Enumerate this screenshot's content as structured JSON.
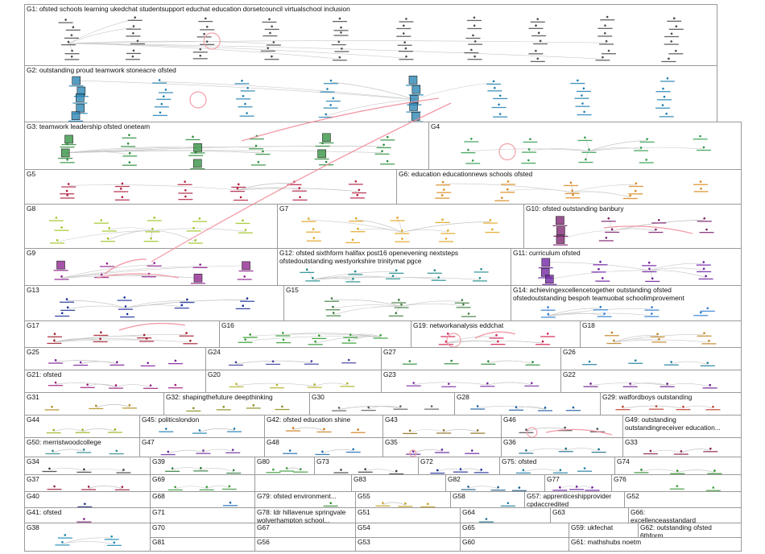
{
  "groups": [
    {
      "id": "G1",
      "label": "G1: ofsted schools learning ukedchat studentsupport educhat education dorsetcouncil virtualschool inclusion",
      "color": "#4a4a4a"
    },
    {
      "id": "G2",
      "label": "G2: outstanding proud teamwork stoneacre ofsted",
      "color": "#1f7fb0"
    },
    {
      "id": "G3",
      "label": "G3: teamwork leadership ofsted oneteam",
      "color": "#2a8c3a"
    },
    {
      "id": "G4",
      "label": "G4",
      "color": "#2c9a4a"
    },
    {
      "id": "G5",
      "label": "G5",
      "color": "#b01c3c"
    },
    {
      "id": "G6",
      "label": "G6: education educationnews schools ofsted",
      "color": "#d9861a"
    },
    {
      "id": "G7",
      "label": "G7",
      "color": "#e0a21a"
    },
    {
      "id": "G8",
      "label": "G8",
      "color": "#9bc41e"
    },
    {
      "id": "G9",
      "label": "G9",
      "color": "#8a1a8a"
    },
    {
      "id": "G10",
      "label": "G10: ofsted outstanding banbury",
      "color": "#7a1a6a"
    },
    {
      "id": "G11",
      "label": "G11: curriculum ofsted",
      "color": "#6a1aa0"
    },
    {
      "id": "G12",
      "label": "G12: ofsted sixthform halifax post16 openevening nextsteps\nofstedoutstanding westyorkshire trinitymat pgce",
      "color": "#1a8a8a"
    },
    {
      "id": "G13",
      "label": "G13",
      "color": "#1a2a9a"
    },
    {
      "id": "G14",
      "label": "G14: achievingexcellencetogether outstanding ofsted\nofstedoutstanding bespoh teamuobat schoolimprovement",
      "color": "#2a7ad0"
    },
    {
      "id": "G15",
      "label": "G15",
      "color": "#3a7a3a"
    },
    {
      "id": "G16",
      "label": "G16",
      "color": "#2a9a2a"
    },
    {
      "id": "G17",
      "label": "G17",
      "color": "#a01a2a"
    },
    {
      "id": "G18",
      "label": "G18",
      "color": "#c08020"
    },
    {
      "id": "G19",
      "label": "G19: networkanalysis eddchat",
      "color": "#d01a4a"
    },
    {
      "id": "G20",
      "label": "G20",
      "color": "#b0b020"
    },
    {
      "id": "G21",
      "label": "G21: ofsted",
      "color": "#9a1a7a"
    },
    {
      "id": "G22",
      "label": "G22",
      "color": "#6a1a8a"
    },
    {
      "id": "G23",
      "label": "G23",
      "color": "#7a2aa0"
    },
    {
      "id": "G24",
      "label": "G24",
      "color": "#3a3a9a"
    },
    {
      "id": "G25",
      "label": "G25",
      "color": "#7a1a9a"
    },
    {
      "id": "G26",
      "label": "G26",
      "color": "#1a7a9a"
    },
    {
      "id": "G27",
      "label": "G27",
      "color": "#2a8a3a"
    },
    {
      "id": "G28",
      "label": "G28",
      "color": "#1a5aa0"
    },
    {
      "id": "G29",
      "label": "G29: watfordboys outstanding",
      "color": "#c03a2a"
    },
    {
      "id": "G30",
      "label": "G30",
      "color": "#5a5a5a"
    },
    {
      "id": "G31",
      "label": "G31",
      "color": "#b08a1a"
    },
    {
      "id": "G32",
      "label": "G32: shapingthefuture deepthinking",
      "color": "#8a8a1a"
    },
    {
      "id": "G33",
      "label": "G33",
      "color": "#8a1a4a"
    },
    {
      "id": "G34",
      "label": "G34",
      "color": "#3a3a3a"
    },
    {
      "id": "G35",
      "label": "G35",
      "color": "#5a1a9a"
    },
    {
      "id": "G36",
      "label": "G36",
      "color": "#1a6a8a"
    },
    {
      "id": "G37",
      "label": "G37",
      "color": "#9a1a3a"
    },
    {
      "id": "G38",
      "label": "G38",
      "color": "#1a8ab0"
    },
    {
      "id": "G39",
      "label": "G39",
      "color": "#2a7a3a"
    },
    {
      "id": "G40",
      "label": "G40",
      "color": "#1a2a7a"
    },
    {
      "id": "G41",
      "label": "G41: ofsted",
      "color": "#7a1a7a"
    },
    {
      "id": "G42",
      "label": "G42: ofsted education shine",
      "color": "#d07a1a"
    },
    {
      "id": "G43",
      "label": "G43",
      "color": "#8a6a1a"
    },
    {
      "id": "G44",
      "label": "G44",
      "color": "#9ab01a"
    },
    {
      "id": "G45",
      "label": "G45: politicslondon",
      "color": "#1a7ab0"
    },
    {
      "id": "G46",
      "label": "G46",
      "color": "#4a4a4a"
    },
    {
      "id": "G47",
      "label": "G47",
      "color": "#6a2a9a"
    },
    {
      "id": "G48",
      "label": "G48",
      "color": "#1a6ab0"
    },
    {
      "id": "G49",
      "label": "G49: outstanding\noutstandingreceiver education...",
      "color": "#a01a1a"
    },
    {
      "id": "G50",
      "label": "G50: merristwoodcollege",
      "color": "#2a8a8a"
    },
    {
      "id": "G51",
      "label": "G51",
      "color": "#6a3a9a"
    },
    {
      "id": "G52",
      "label": "G52",
      "color": "#3a9a3a"
    },
    {
      "id": "G53",
      "label": "G53",
      "color": "#8a1a8a"
    },
    {
      "id": "G54",
      "label": "G54",
      "color": "#b08a1a"
    },
    {
      "id": "G55",
      "label": "G55",
      "color": "#c0a01a"
    },
    {
      "id": "G56",
      "label": "G56",
      "color": "#1a6a9a"
    },
    {
      "id": "G57",
      "label": "G57: apprenticeshipprovider\ncpdaccredited",
      "color": "#1a8a3a"
    },
    {
      "id": "G58",
      "label": "G58",
      "color": "#1a7aa0"
    },
    {
      "id": "G59",
      "label": "G59: ukfechat",
      "color": "#4a4a9a"
    },
    {
      "id": "G60",
      "label": "G60",
      "color": "#5a5a5a"
    },
    {
      "id": "G61",
      "label": "G61: mathshubs noetm",
      "color": "#2a2a8a"
    },
    {
      "id": "G62",
      "label": "G62: outstanding ofsted\n6thform",
      "color": "#1a8a8a"
    },
    {
      "id": "G63",
      "label": "G63",
      "color": "#2a2a2a"
    },
    {
      "id": "G64",
      "label": "G64",
      "color": "#1a6a8a"
    },
    {
      "id": "G65",
      "label": "G65",
      "color": "#3a3a9a"
    },
    {
      "id": "G66",
      "label": "G66:\nexcellenceasstandard",
      "color": "#1a8a5a"
    },
    {
      "id": "G67",
      "label": "G67",
      "color": "#9ab01a"
    },
    {
      "id": "G68",
      "label": "G68",
      "color": "#1a6ab0"
    },
    {
      "id": "G69",
      "label": "G69",
      "color": "#3a9a3a"
    },
    {
      "id": "G70",
      "label": "G70",
      "color": "#d0a01a"
    },
    {
      "id": "G71",
      "label": "G71",
      "color": "#2a7a2a"
    },
    {
      "id": "G72",
      "label": "G72",
      "color": "#1a2a9a"
    },
    {
      "id": "G73",
      "label": "G73",
      "color": "#3a3a3a"
    },
    {
      "id": "G74",
      "label": "G74",
      "color": "#2a8a2a"
    },
    {
      "id": "G75",
      "label": "G75: ofsted",
      "color": "#1a7aa0"
    },
    {
      "id": "G76",
      "label": "G76",
      "color": "#3a9a3a"
    },
    {
      "id": "G77",
      "label": "G77",
      "color": "#6a1a9a"
    },
    {
      "id": "G78",
      "label": "G78: ldr hillavenue springvale\nwolverhampton school...",
      "color": "#a07a1a"
    },
    {
      "id": "G79",
      "label": "G79: ofsted environment...",
      "color": "#2a8a2a"
    },
    {
      "id": "G80",
      "label": "G80",
      "color": "#3a9a3a"
    },
    {
      "id": "G81",
      "label": "G81",
      "color": "#1a2a8a"
    },
    {
      "id": "G82",
      "label": "G82",
      "color": "#1a5a8a"
    },
    {
      "id": "G83",
      "label": "G83",
      "color": "#1a2a6a"
    }
  ]
}
